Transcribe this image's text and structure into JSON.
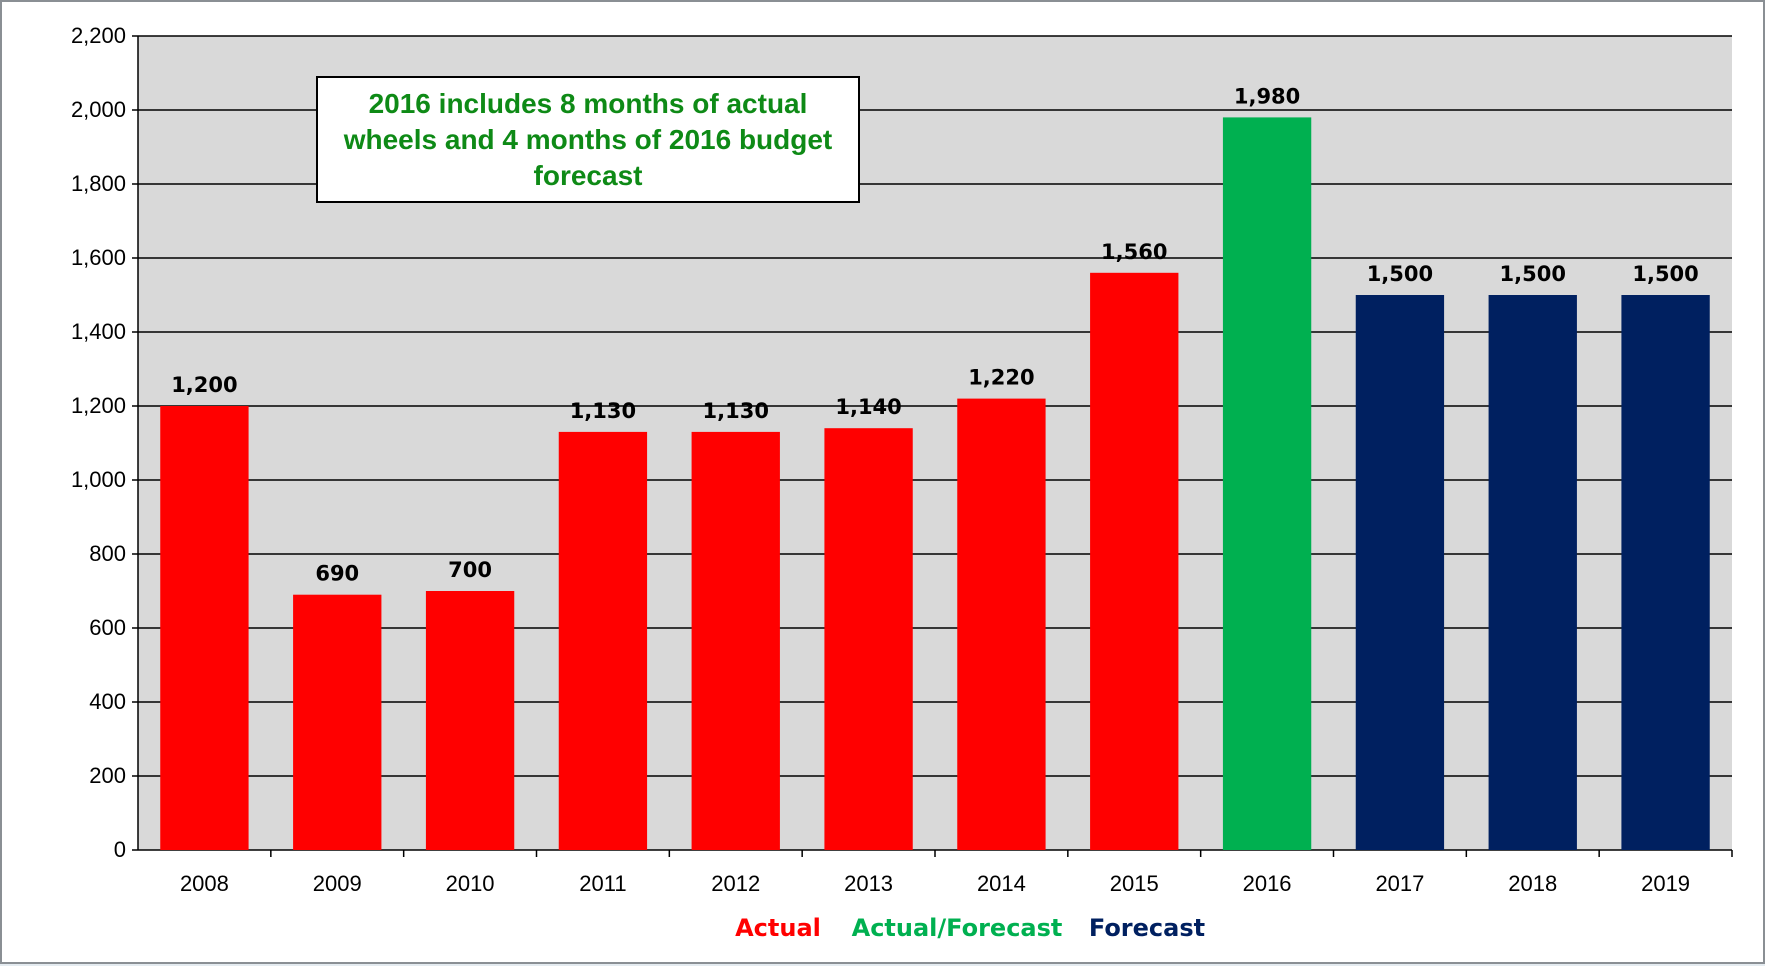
{
  "chart_data": {
    "type": "bar",
    "categories": [
      "2008",
      "2009",
      "2010",
      "2011",
      "2012",
      "2013",
      "2014",
      "2015",
      "2016",
      "2017",
      "2018",
      "2019"
    ],
    "values": [
      1200,
      690,
      700,
      1130,
      1130,
      1140,
      1220,
      1560,
      1980,
      1500,
      1500,
      1500
    ],
    "value_labels": [
      "1,200",
      "690",
      "700",
      "1,130",
      "1,130",
      "1,140",
      "1,220",
      "1,560",
      "1,980",
      "1,500",
      "1,500",
      "1,500"
    ],
    "bar_groups": [
      "Actual",
      "Actual",
      "Actual",
      "Actual",
      "Actual",
      "Actual",
      "Actual",
      "Actual",
      "Actual/Forecast",
      "Forecast",
      "Forecast",
      "Forecast"
    ],
    "ylim": [
      0,
      2200
    ],
    "yticks": [
      0,
      200,
      400,
      600,
      800,
      1000,
      1200,
      1400,
      1600,
      1800,
      2000,
      2200
    ],
    "ytick_labels": [
      "0",
      "200",
      "400",
      "600",
      "800",
      "1,000",
      "1,200",
      "1,400",
      "1,600",
      "1,800",
      "2,000",
      "2,200"
    ],
    "grid": true,
    "plot_background": "#d9d9d9",
    "legend_position": "bottom",
    "legend": [
      {
        "label": "Actual",
        "color": "#ff0000"
      },
      {
        "label": "Actual/Forecast",
        "color": "#00b050"
      },
      {
        "label": "Forecast",
        "color": "#002060"
      }
    ],
    "annotation": "2016 includes 8 months of actual wheels and 4 months of 2016 budget forecast",
    "annotation_color": "#0e8a16"
  }
}
